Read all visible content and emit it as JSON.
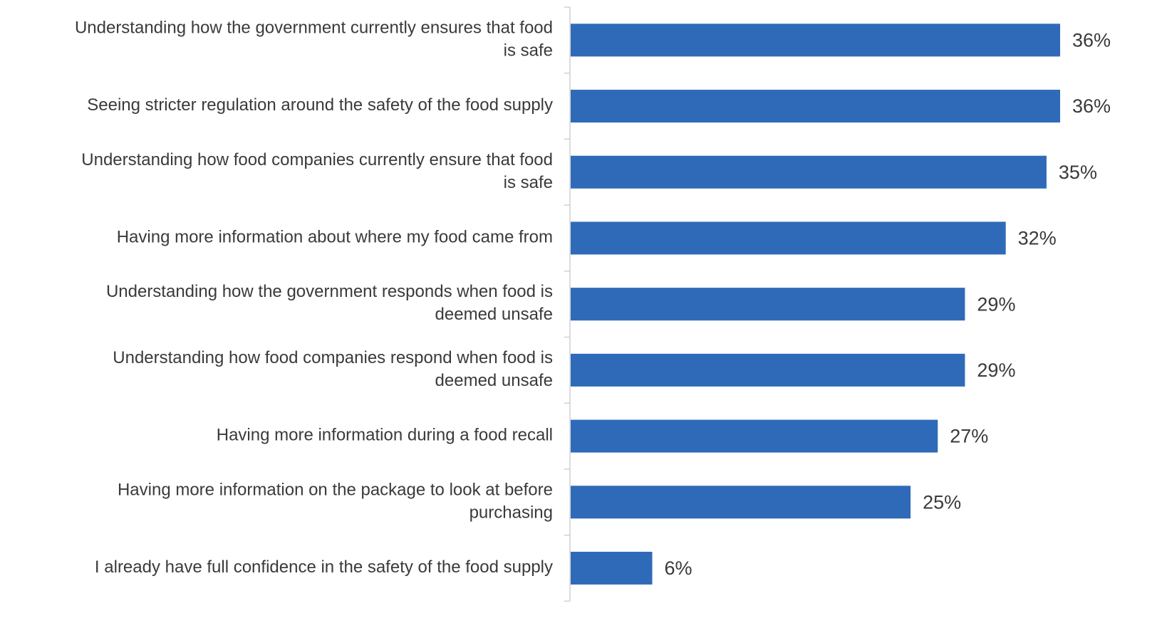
{
  "chart_data": {
    "type": "bar",
    "orientation": "horizontal",
    "categories": [
      [
        "Understanding how the government currently ensures that food",
        "is safe"
      ],
      [
        "Seeing stricter regulation around the safety of the food supply"
      ],
      [
        "Understanding how food companies currently ensure that food",
        "is safe"
      ],
      [
        "Having more information about where my food came from"
      ],
      [
        "Understanding how the government responds when food is",
        "deemed unsafe"
      ],
      [
        "Understanding how food companies respond when food is",
        "deemed unsafe"
      ],
      [
        "Having more information during a food recall"
      ],
      [
        "Having more information on the package to look at before",
        "purchasing"
      ],
      [
        "I already have full confidence in the safety of the food supply"
      ]
    ],
    "values": [
      36,
      36,
      35,
      32,
      29,
      29,
      27,
      25,
      6
    ],
    "value_labels": [
      "36%",
      "36%",
      "35%",
      "32%",
      "29%",
      "29%",
      "27%",
      "25%",
      "6%"
    ],
    "color": "#2f6ab8"
  }
}
